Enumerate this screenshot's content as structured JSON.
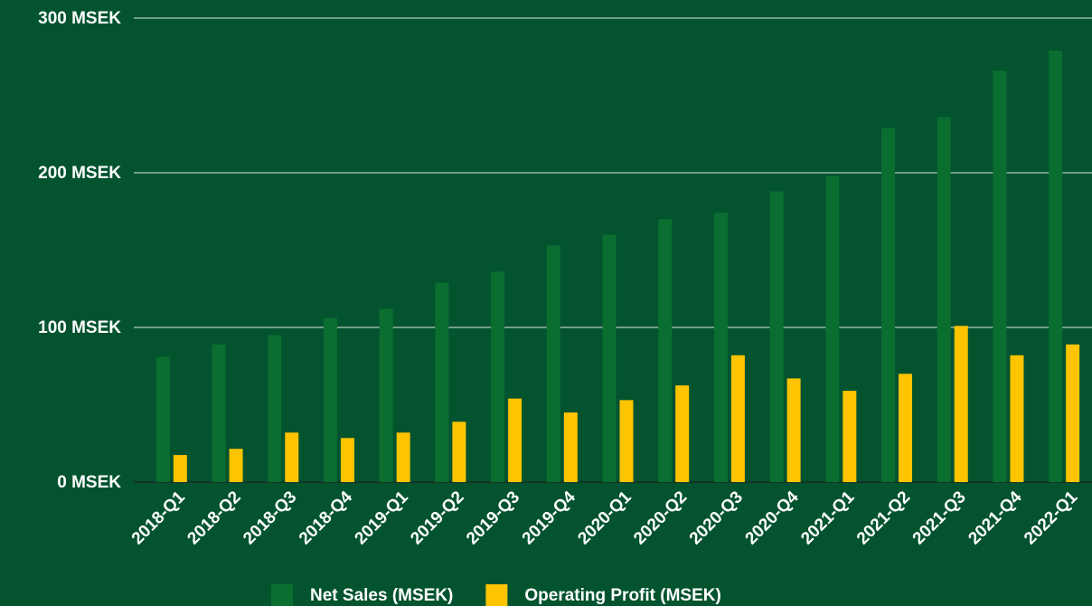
{
  "chart_data": {
    "type": "bar",
    "categories": [
      "2018-Q1",
      "2018-Q2",
      "2018-Q3",
      "2018-Q4",
      "2019-Q1",
      "2019-Q2",
      "2019-Q3",
      "2019-Q4",
      "2020-Q1",
      "2020-Q2",
      "2020-Q3",
      "2020-Q4",
      "2021-Q1",
      "2021-Q2",
      "2021-Q3",
      "2021-Q4",
      "2022-Q1"
    ],
    "series": [
      {
        "name": "Net Sales (MSEK)",
        "color": "#0a6e30",
        "values": [
          81,
          89,
          95,
          106,
          112,
          129,
          136,
          153,
          160,
          170,
          174,
          188,
          198,
          229,
          236,
          266,
          279
        ]
      },
      {
        "name": "Operating Profit (MSEK)",
        "color": "#ffc400",
        "values": [
          17.5,
          21.5,
          32,
          28.5,
          32,
          39,
          54,
          45,
          53,
          62.5,
          82,
          67,
          59,
          70,
          101,
          82,
          89
        ]
      }
    ],
    "ylim": [
      0,
      300
    ],
    "yticks": [
      {
        "value": 0,
        "label": "0 MSEK"
      },
      {
        "value": 100,
        "label": "100 MSEK"
      },
      {
        "value": 200,
        "label": "200 MSEK"
      },
      {
        "value": 300,
        "label": "300 MSEK"
      }
    ],
    "grid": true,
    "legend": "bottom"
  }
}
